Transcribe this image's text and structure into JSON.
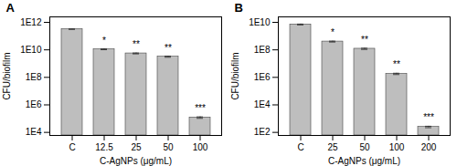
{
  "chart_data": [
    {
      "type": "bar",
      "panel_label": "A",
      "categories": [
        "C",
        "12.5",
        "25",
        "50",
        "100"
      ],
      "values": [
        320000000000.0,
        11000000000.0,
        5500000000.0,
        3200000000.0,
        120000.0
      ],
      "errors": [
        12000000000.0,
        700000000.0,
        400000000.0,
        300000000.0,
        15000.0
      ],
      "significance": [
        null,
        "*",
        "**",
        "**",
        "***"
      ],
      "xlabel": "C-AgNPs (μg/mL)",
      "ylabel": "CFU/biofilm",
      "color": "#BEBEBE",
      "log": "y",
      "ylim": [
        6000,
        2500000000000
      ],
      "yticks": [
        {
          "value": 10000,
          "label": "1E4"
        },
        {
          "value": 1000000,
          "label": "1E6"
        },
        {
          "value": 100000000,
          "label": "1E8"
        },
        {
          "value": 10000000000,
          "label": "1E10"
        },
        {
          "value": 1000000000000,
          "label": "1E12"
        }
      ]
    },
    {
      "type": "bar",
      "panel_label": "B",
      "categories": [
        "C",
        "25",
        "50",
        "100",
        "200"
      ],
      "values": [
        7000000000.0,
        400000000.0,
        120000000.0,
        1800000.0,
        250.0
      ],
      "errors": [
        500000000.0,
        30000000.0,
        12000000.0,
        200000.0,
        30.0
      ],
      "significance": [
        null,
        "*",
        "**",
        "**",
        "***"
      ],
      "xlabel": "C-AgNPs (μg/mL)",
      "ylabel": "CFU/biofilm",
      "color": "#BEBEBE",
      "log": "y",
      "ylim": [
        60,
        25000000000
      ],
      "yticks": [
        {
          "value": 100,
          "label": "1E2"
        },
        {
          "value": 10000,
          "label": "1E4"
        },
        {
          "value": 1000000,
          "label": "1E6"
        },
        {
          "value": 100000000,
          "label": "1E8"
        },
        {
          "value": 10000000000,
          "label": "1E10"
        }
      ]
    }
  ]
}
